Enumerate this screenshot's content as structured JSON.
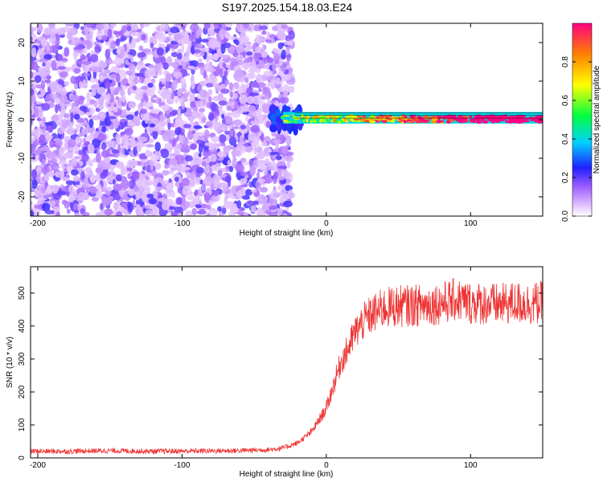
{
  "title": "S197.2025.154.18.03.E24",
  "chart_data": [
    {
      "type": "heatmap",
      "xlabel": "Height of straight line (km)",
      "ylabel": "Frequency (Hz)",
      "xlim": [
        -205,
        150
      ],
      "ylim": [
        -25,
        25
      ],
      "x_ticks": [
        -200,
        -100,
        0,
        100
      ],
      "y_ticks": [
        -20,
        -10,
        0,
        10,
        20
      ],
      "colorbar": {
        "label": "Normalized spectral amplitude",
        "range": [
          0,
          1
        ],
        "ticks": [
          "0.0",
          "0.2",
          "0.4",
          "0.6",
          "0.8"
        ],
        "tick_values": [
          0,
          0.2,
          0.4,
          0.6,
          0.8
        ]
      },
      "regions": [
        {
          "x_range": [
            -205,
            -30
          ],
          "freq_range": [
            -25,
            25
          ],
          "amplitude": [
            0.05,
            0.2
          ]
        },
        {
          "x_range": [
            -30,
            150
          ],
          "freq_range": [
            -1,
            2
          ],
          "amplitude": [
            0.3,
            1.0
          ]
        }
      ],
      "grid": false
    },
    {
      "type": "line",
      "xlabel": "Height of straight line (km)",
      "ylabel": "SNR (10 * v/v)",
      "xlim": [
        -205,
        150
      ],
      "ylim": [
        0,
        580
      ],
      "x_ticks": [
        -200,
        -100,
        0,
        100
      ],
      "y_ticks": [
        0,
        100,
        200,
        300,
        400,
        500
      ],
      "series": [
        {
          "x": [
            -205,
            -180,
            -150,
            -120,
            -90,
            -60,
            -40,
            -30,
            -20,
            -10,
            0,
            5,
            10,
            15,
            20,
            25,
            30,
            40,
            50,
            60,
            70,
            80,
            90,
            100,
            110,
            120,
            130,
            140,
            150
          ],
          "y": [
            20,
            20,
            22,
            20,
            21,
            22,
            25,
            30,
            45,
            80,
            150,
            220,
            290,
            330,
            380,
            410,
            430,
            455,
            460,
            462,
            465,
            470,
            480,
            470,
            468,
            465,
            470,
            468,
            470
          ],
          "color": "#ee3333"
        }
      ],
      "grid": false
    }
  ]
}
